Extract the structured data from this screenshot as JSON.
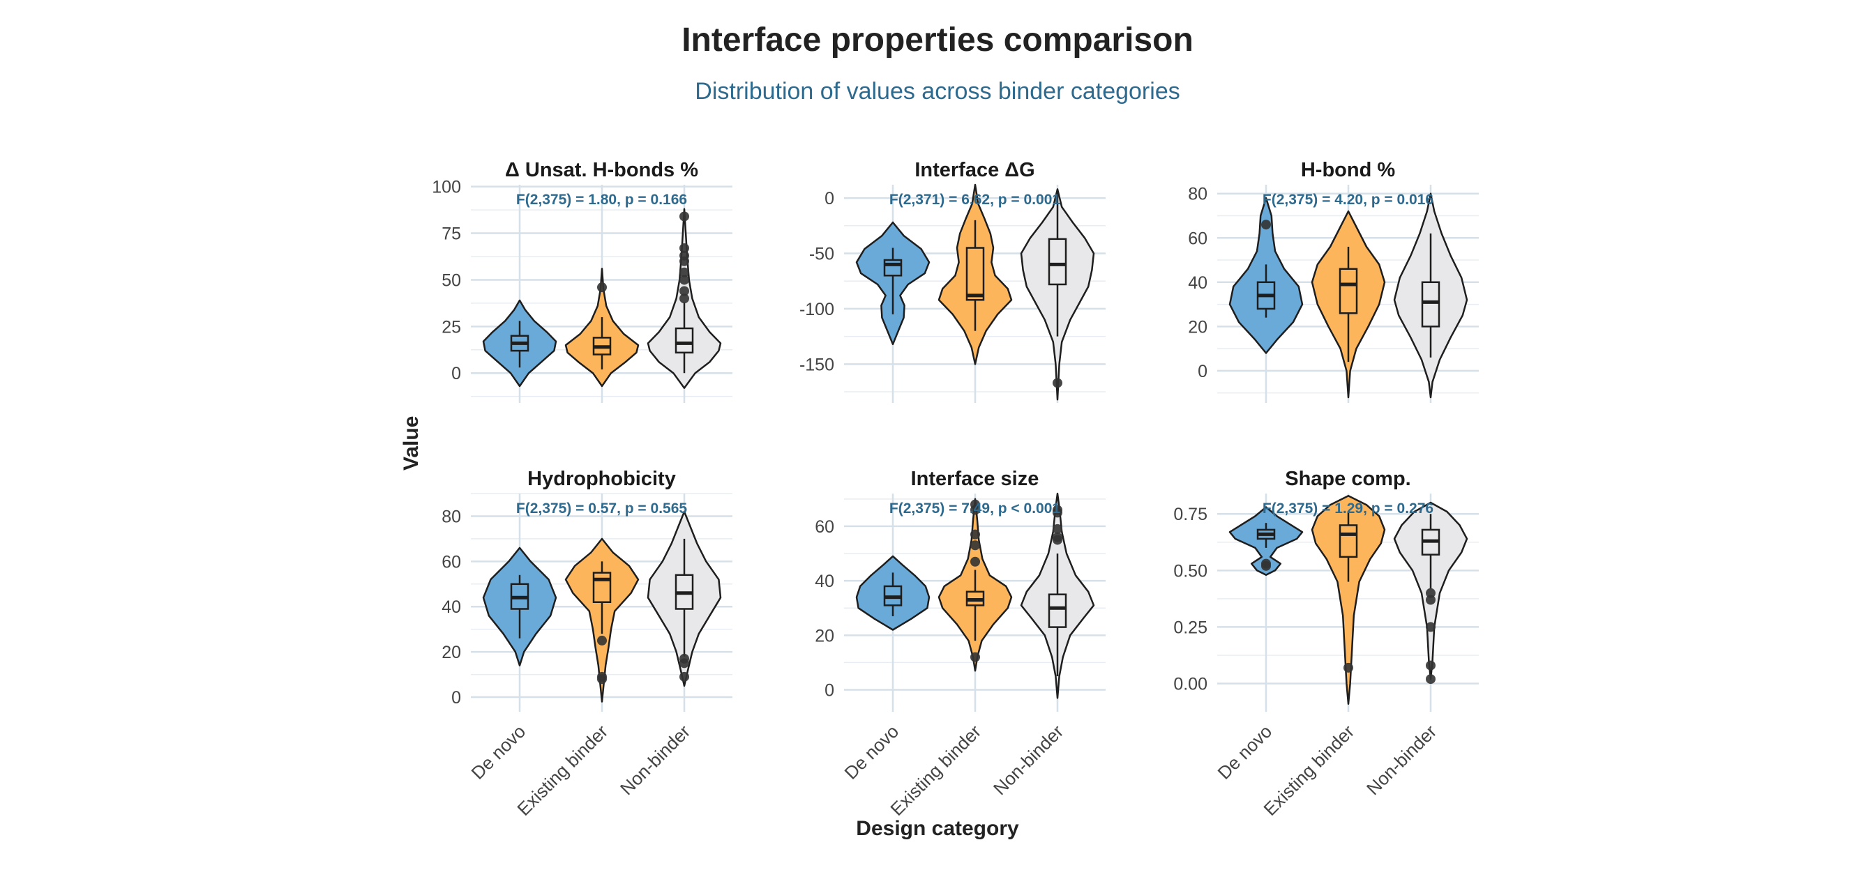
{
  "title": "Interface properties comparison",
  "subtitle": "Distribution of values across binder categories",
  "y_axis_title": "Value",
  "x_axis_title": "Design category",
  "colors": {
    "De novo": "#6aaad8",
    "Existing binder": "#fdb55c",
    "Non-binder": "#e8e8ea"
  },
  "chart_data": [
    {
      "type": "violin",
      "title": "Δ Unsat. H-bonds %",
      "stat": "F(2,375) = 1.80, p = 0.166",
      "categories": [
        "De novo",
        "Existing binder",
        "Non-binder"
      ],
      "ylim": [
        -13,
        101
      ],
      "yticks": [
        0,
        25,
        50,
        75,
        100
      ],
      "series": [
        {
          "name": "De novo",
          "violin": [
            [
              -7,
              0
            ],
            [
              0,
              0.25
            ],
            [
              6,
              0.6
            ],
            [
              12,
              0.95
            ],
            [
              17,
              1.0
            ],
            [
              22,
              0.75
            ],
            [
              28,
              0.4
            ],
            [
              34,
              0.15
            ],
            [
              39,
              0
            ]
          ],
          "q1": 12,
          "median": 16,
          "q3": 20,
          "whisker_low": 3,
          "whisker_high": 28,
          "outliers": []
        },
        {
          "name": "Existing binder",
          "violin": [
            [
              -7,
              0
            ],
            [
              0,
              0.25
            ],
            [
              6,
              0.65
            ],
            [
              11,
              0.95
            ],
            [
              15,
              1.0
            ],
            [
              21,
              0.6
            ],
            [
              28,
              0.3
            ],
            [
              36,
              0.12
            ],
            [
              45,
              0.04
            ],
            [
              56,
              0
            ]
          ],
          "q1": 10,
          "median": 14,
          "q3": 19,
          "whisker_low": 2,
          "whisker_high": 30,
          "outliers": [
            46
          ]
        },
        {
          "name": "Non-binder",
          "violin": [
            [
              -8,
              0
            ],
            [
              0,
              0.3
            ],
            [
              6,
              0.7
            ],
            [
              12,
              0.95
            ],
            [
              16,
              1.0
            ],
            [
              22,
              0.7
            ],
            [
              30,
              0.4
            ],
            [
              40,
              0.22
            ],
            [
              50,
              0.13
            ],
            [
              62,
              0.08
            ],
            [
              75,
              0.04
            ],
            [
              88,
              0
            ]
          ],
          "q1": 11,
          "median": 16,
          "q3": 24,
          "whisker_low": 0,
          "whisker_high": 38,
          "outliers": [
            40,
            44,
            50,
            54,
            60,
            63,
            67,
            84
          ]
        }
      ]
    },
    {
      "type": "violin",
      "title": "Interface ΔG",
      "stat": "F(2,371) = 6.62, p = 0.001",
      "categories": [
        "De novo",
        "Existing binder",
        "Non-binder"
      ],
      "ylim": [
        -180,
        12
      ],
      "yticks": [
        -150,
        -100,
        -50,
        0
      ],
      "series": [
        {
          "name": "De novo",
          "violin": [
            [
              -132,
              0
            ],
            [
              -120,
              0.15
            ],
            [
              -108,
              0.3
            ],
            [
              -97,
              0.32
            ],
            [
              -88,
              0.2
            ],
            [
              -78,
              0.42
            ],
            [
              -68,
              0.88
            ],
            [
              -58,
              1.0
            ],
            [
              -46,
              0.78
            ],
            [
              -34,
              0.3
            ],
            [
              -22,
              0
            ]
          ],
          "q1": -70,
          "median": -60,
          "q3": -56,
          "whisker_low": -105,
          "whisker_high": -45,
          "outliers": []
        },
        {
          "name": "Existing binder",
          "violin": [
            [
              -150,
              0
            ],
            [
              -135,
              0.1
            ],
            [
              -120,
              0.3
            ],
            [
              -105,
              0.62
            ],
            [
              -92,
              1.0
            ],
            [
              -82,
              0.9
            ],
            [
              -70,
              0.55
            ],
            [
              -58,
              0.45
            ],
            [
              -45,
              0.5
            ],
            [
              -32,
              0.42
            ],
            [
              -18,
              0.25
            ],
            [
              -5,
              0.08
            ],
            [
              12,
              0
            ]
          ],
          "q1": -92,
          "median": -88,
          "q3": -45,
          "whisker_low": -120,
          "whisker_high": -20,
          "outliers": []
        },
        {
          "name": "Non-binder",
          "violin": [
            [
              -182,
              0
            ],
            [
              -150,
              0.05
            ],
            [
              -130,
              0.12
            ],
            [
              -110,
              0.35
            ],
            [
              -95,
              0.6
            ],
            [
              -80,
              0.85
            ],
            [
              -65,
              0.95
            ],
            [
              -50,
              1.0
            ],
            [
              -36,
              0.75
            ],
            [
              -22,
              0.42
            ],
            [
              -8,
              0.12
            ],
            [
              8,
              0
            ]
          ],
          "q1": -78,
          "median": -60,
          "q3": -37,
          "whisker_low": -125,
          "whisker_high": 5,
          "outliers": [
            -167
          ]
        }
      ]
    },
    {
      "type": "violin",
      "title": "H-bond %",
      "stat": "F(2,375) = 4.20, p = 0.016",
      "categories": [
        "De novo",
        "Existing binder",
        "Non-binder"
      ],
      "ylim": [
        -12,
        84
      ],
      "yticks": [
        0,
        20,
        40,
        60,
        80
      ],
      "series": [
        {
          "name": "De novo",
          "violin": [
            [
              8,
              0
            ],
            [
              14,
              0.3
            ],
            [
              22,
              0.75
            ],
            [
              30,
              1.0
            ],
            [
              38,
              0.9
            ],
            [
              46,
              0.5
            ],
            [
              54,
              0.25
            ],
            [
              62,
              0.18
            ],
            [
              70,
              0.15
            ],
            [
              78,
              0
            ]
          ],
          "q1": 28,
          "median": 34,
          "q3": 40,
          "whisker_low": 24,
          "whisker_high": 48,
          "outliers": [
            66
          ]
        },
        {
          "name": "Existing binder",
          "violin": [
            [
              -12,
              0
            ],
            [
              0,
              0.05
            ],
            [
              10,
              0.22
            ],
            [
              20,
              0.55
            ],
            [
              30,
              0.85
            ],
            [
              40,
              1.0
            ],
            [
              48,
              0.85
            ],
            [
              56,
              0.5
            ],
            [
              64,
              0.25
            ],
            [
              72,
              0
            ]
          ],
          "q1": 26,
          "median": 39,
          "q3": 46,
          "whisker_low": 4,
          "whisker_high": 56,
          "outliers": []
        },
        {
          "name": "Non-binder",
          "violin": [
            [
              -12,
              0
            ],
            [
              -5,
              0.05
            ],
            [
              5,
              0.25
            ],
            [
              15,
              0.55
            ],
            [
              25,
              0.88
            ],
            [
              32,
              1.0
            ],
            [
              42,
              0.85
            ],
            [
              52,
              0.55
            ],
            [
              62,
              0.3
            ],
            [
              72,
              0.1
            ],
            [
              80,
              0
            ]
          ],
          "q1": 20,
          "median": 31,
          "q3": 40,
          "whisker_low": 6,
          "whisker_high": 62,
          "outliers": []
        }
      ]
    },
    {
      "type": "violin",
      "title": "Hydrophobicity",
      "stat": "F(2,375) = 0.57, p = 0.565",
      "categories": [
        "De novo",
        "Existing binder",
        "Non-binder"
      ],
      "ylim": [
        -4,
        90
      ],
      "yticks": [
        0,
        20,
        40,
        60,
        80
      ],
      "series": [
        {
          "name": "De novo",
          "violin": [
            [
              14,
              0
            ],
            [
              20,
              0.12
            ],
            [
              28,
              0.45
            ],
            [
              36,
              0.85
            ],
            [
              44,
              1.0
            ],
            [
              52,
              0.8
            ],
            [
              60,
              0.3
            ],
            [
              66,
              0
            ]
          ],
          "q1": 39,
          "median": 44,
          "q3": 50,
          "whisker_low": 26,
          "whisker_high": 54,
          "outliers": []
        },
        {
          "name": "Existing binder",
          "violin": [
            [
              -2,
              0
            ],
            [
              6,
              0.05
            ],
            [
              14,
              0.1
            ],
            [
              22,
              0.18
            ],
            [
              30,
              0.25
            ],
            [
              38,
              0.35
            ],
            [
              46,
              0.8
            ],
            [
              52,
              1.0
            ],
            [
              58,
              0.75
            ],
            [
              64,
              0.3
            ],
            [
              70,
              0
            ]
          ],
          "q1": 42,
          "median": 52,
          "q3": 55,
          "whisker_low": 28,
          "whisker_high": 60,
          "outliers": [
            8,
            9,
            25
          ]
        },
        {
          "name": "Non-binder",
          "violin": [
            [
              5,
              0
            ],
            [
              12,
              0.1
            ],
            [
              20,
              0.22
            ],
            [
              28,
              0.4
            ],
            [
              36,
              0.7
            ],
            [
              44,
              1.0
            ],
            [
              52,
              0.95
            ],
            [
              60,
              0.6
            ],
            [
              68,
              0.35
            ],
            [
              76,
              0.15
            ],
            [
              82,
              0
            ]
          ],
          "q1": 39,
          "median": 46,
          "q3": 54,
          "whisker_low": 18,
          "whisker_high": 70,
          "outliers": [
            9,
            15,
            17
          ]
        }
      ]
    },
    {
      "type": "violin",
      "title": "Interface size",
      "stat": "F(2,375) = 7.49, p < 0.001",
      "categories": [
        "De novo",
        "Existing binder",
        "Non-binder"
      ],
      "ylim": [
        -6,
        72
      ],
      "yticks": [
        0,
        20,
        40,
        60
      ],
      "series": [
        {
          "name": "De novo",
          "violin": [
            [
              22,
              0
            ],
            [
              26,
              0.5
            ],
            [
              30,
              0.95
            ],
            [
              34,
              1.0
            ],
            [
              38,
              0.9
            ],
            [
              42,
              0.6
            ],
            [
              46,
              0.25
            ],
            [
              49,
              0
            ]
          ],
          "q1": 31,
          "median": 34,
          "q3": 38,
          "whisker_low": 27,
          "whisker_high": 43,
          "outliers": []
        },
        {
          "name": "Existing binder",
          "violin": [
            [
              7,
              0
            ],
            [
              12,
              0.06
            ],
            [
              18,
              0.18
            ],
            [
              24,
              0.5
            ],
            [
              30,
              0.9
            ],
            [
              34,
              1.0
            ],
            [
              38,
              0.85
            ],
            [
              42,
              0.4
            ],
            [
              48,
              0.2
            ],
            [
              55,
              0.1
            ],
            [
              62,
              0.06
            ],
            [
              70,
              0
            ]
          ],
          "q1": 31,
          "median": 33,
          "q3": 36,
          "whisker_low": 18,
          "whisker_high": 44,
          "outliers": [
            12,
            47,
            53,
            57,
            66,
            68
          ]
        },
        {
          "name": "Non-binder",
          "violin": [
            [
              -3,
              0
            ],
            [
              5,
              0.05
            ],
            [
              12,
              0.15
            ],
            [
              20,
              0.35
            ],
            [
              26,
              0.7
            ],
            [
              31,
              1.0
            ],
            [
              36,
              0.85
            ],
            [
              42,
              0.5
            ],
            [
              50,
              0.25
            ],
            [
              58,
              0.12
            ],
            [
              66,
              0.06
            ],
            [
              72,
              0
            ]
          ],
          "q1": 23,
          "median": 30,
          "q3": 35,
          "whisker_low": 5,
          "whisker_high": 50,
          "outliers": [
            55,
            56,
            59,
            65,
            66
          ]
        }
      ]
    },
    {
      "type": "violin",
      "title": "Shape comp.",
      "stat": "F(2,375) = 1.29, p = 0.276",
      "categories": [
        "De novo",
        "Existing binder",
        "Non-binder"
      ],
      "ylim": [
        -0.1,
        0.84
      ],
      "yticks": [
        0,
        0.25,
        0.5,
        0.75
      ],
      "series": [
        {
          "name": "De novo",
          "violin": [
            [
              0.48,
              0
            ],
            [
              0.5,
              0.25
            ],
            [
              0.53,
              0.4
            ],
            [
              0.56,
              0.12
            ],
            [
              0.6,
              0.3
            ],
            [
              0.64,
              0.85
            ],
            [
              0.67,
              1.0
            ],
            [
              0.7,
              0.7
            ],
            [
              0.74,
              0.3
            ],
            [
              0.78,
              0
            ]
          ],
          "q1": 0.64,
          "median": 0.66,
          "q3": 0.68,
          "whisker_low": 0.6,
          "whisker_high": 0.71,
          "outliers": [
            0.52,
            0.53
          ]
        },
        {
          "name": "Existing binder",
          "violin": [
            [
              -0.09,
              0
            ],
            [
              0,
              0.05
            ],
            [
              0.15,
              0.1
            ],
            [
              0.3,
              0.15
            ],
            [
              0.45,
              0.3
            ],
            [
              0.55,
              0.6
            ],
            [
              0.62,
              0.9
            ],
            [
              0.68,
              1.0
            ],
            [
              0.74,
              0.85
            ],
            [
              0.79,
              0.5
            ],
            [
              0.83,
              0
            ]
          ],
          "q1": 0.56,
          "median": 0.66,
          "q3": 0.7,
          "whisker_low": 0.45,
          "whisker_high": 0.76,
          "outliers": [
            0.07
          ]
        },
        {
          "name": "Non-binder",
          "violin": [
            [
              0.02,
              0
            ],
            [
              0.1,
              0.05
            ],
            [
              0.25,
              0.1
            ],
            [
              0.4,
              0.25
            ],
            [
              0.5,
              0.5
            ],
            [
              0.58,
              0.85
            ],
            [
              0.64,
              1.0
            ],
            [
              0.7,
              0.8
            ],
            [
              0.76,
              0.45
            ],
            [
              0.8,
              0
            ]
          ],
          "q1": 0.57,
          "median": 0.63,
          "q3": 0.68,
          "whisker_low": 0.42,
          "whisker_high": 0.75,
          "outliers": [
            0.02,
            0.08,
            0.25,
            0.37,
            0.4
          ]
        }
      ]
    }
  ]
}
